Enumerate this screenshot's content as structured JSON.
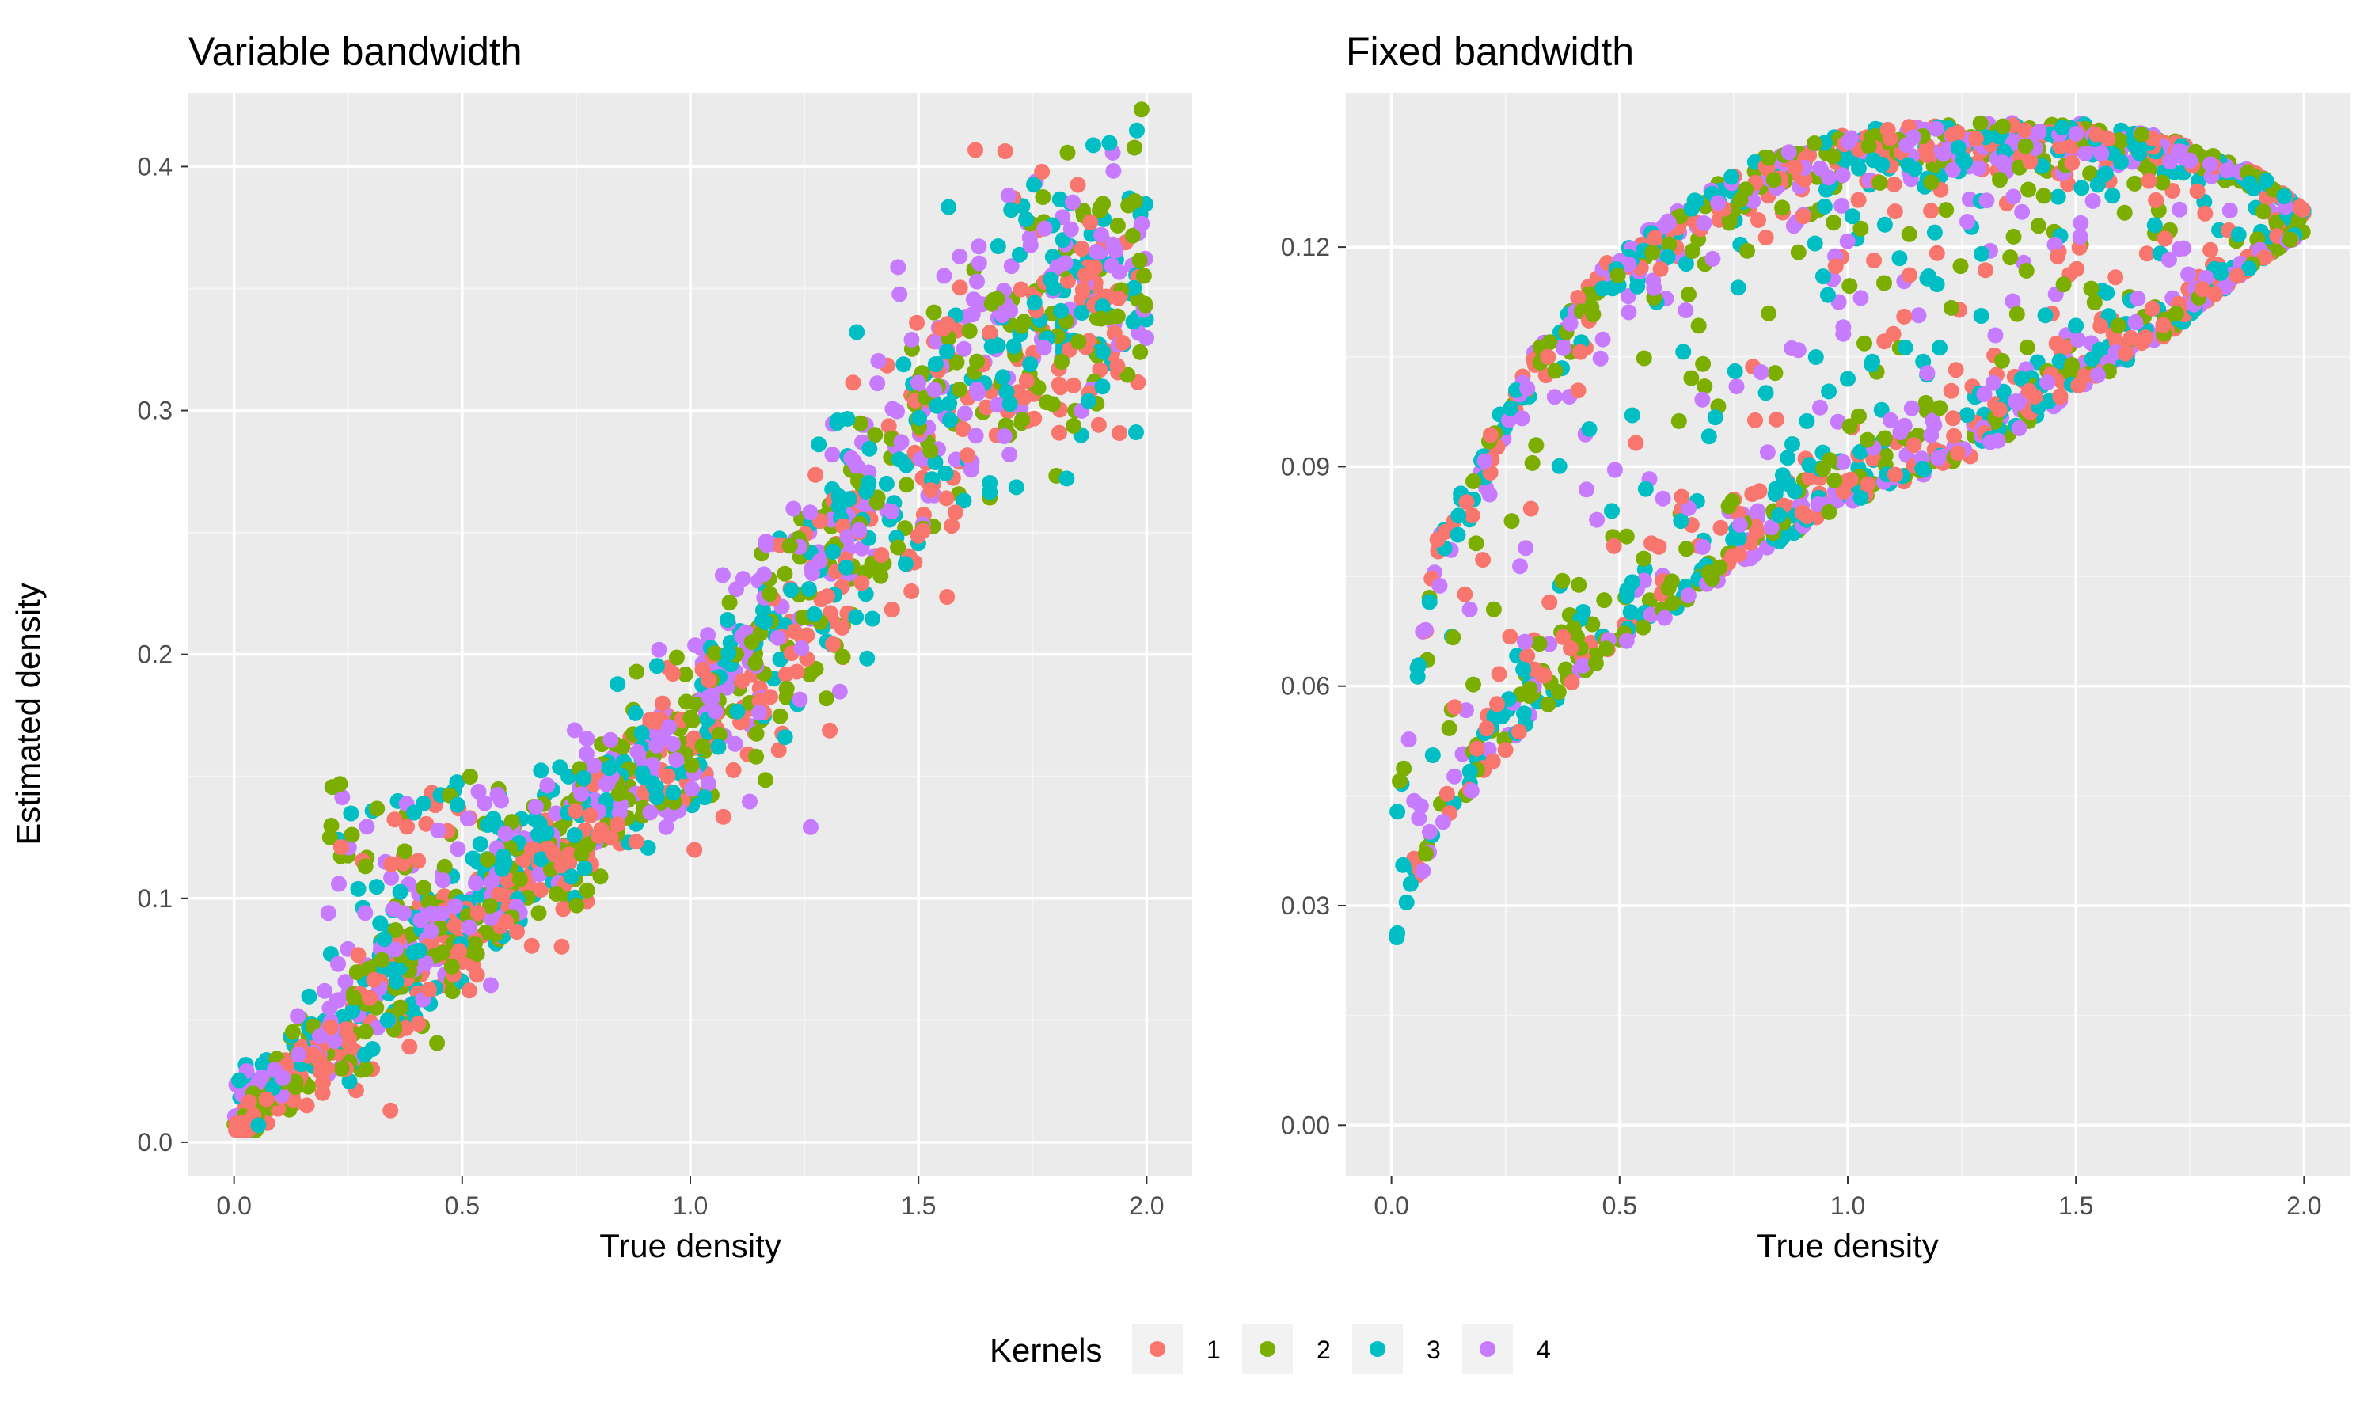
{
  "figure": {
    "shared_ylabel": "Estimated density",
    "legend_title": "Kernels"
  },
  "colors": {
    "panel_bg": "#ebebeb",
    "grid_major": "#ffffff",
    "grid_minor": "#f5f5f5",
    "kernel_1": "#f8766d",
    "kernel_2": "#7cae00",
    "kernel_3": "#00bfc4",
    "kernel_4": "#c77cff"
  },
  "chart_data": [
    {
      "type": "scatter",
      "title": "Variable bandwidth",
      "xlabel": "True density",
      "ylabel": "Estimated density",
      "xlim": [
        -0.1,
        2.1
      ],
      "ylim": [
        -0.014,
        0.43
      ],
      "xticks": [
        0.0,
        0.5,
        1.0,
        1.5,
        2.0
      ],
      "xtick_labels": [
        "0.0",
        "0.5",
        "1.0",
        "1.5",
        "2.0"
      ],
      "yticks": [
        0.0,
        0.1,
        0.2,
        0.3,
        0.4
      ],
      "ytick_labels": [
        "0.0",
        "0.1",
        "0.2",
        "0.3",
        "0.4"
      ],
      "grid": true,
      "legend": "bottom",
      "series": [
        {
          "name": "1",
          "points_per_series": 400
        },
        {
          "name": "2",
          "points_per_series": 400
        },
        {
          "name": "3",
          "points_per_series": 400
        },
        {
          "name": "4",
          "points_per_series": 400
        }
      ],
      "trend": {
        "x": [
          0.0,
          0.25,
          0.5,
          0.75,
          1.0,
          1.25,
          1.5,
          1.75,
          2.0
        ],
        "y_center": [
          0.01,
          0.05,
          0.09,
          0.13,
          0.17,
          0.22,
          0.29,
          0.34,
          0.36
        ],
        "spread": [
          0.01,
          0.02,
          0.025,
          0.025,
          0.03,
          0.04,
          0.05,
          0.05,
          0.05
        ]
      },
      "cluster": {
        "x_range": [
          0.2,
          0.6
        ],
        "y_range": [
          0.09,
          0.15
        ]
      }
    },
    {
      "type": "scatter",
      "title": "Fixed bandwidth",
      "xlabel": "True density",
      "ylabel": "Estimated density",
      "xlim": [
        -0.1,
        2.1
      ],
      "ylim": [
        -0.007,
        0.141
      ],
      "xticks": [
        0.0,
        0.5,
        1.0,
        1.5,
        2.0
      ],
      "xtick_labels": [
        "0.0",
        "0.5",
        "1.0",
        "1.5",
        "2.0"
      ],
      "yticks": [
        0.0,
        0.03,
        0.06,
        0.09,
        0.12
      ],
      "ytick_labels": [
        "0.00",
        "0.03",
        "0.06",
        "0.09",
        "0.12"
      ],
      "grid": true,
      "legend": "bottom",
      "series": [
        {
          "name": "1",
          "points_per_series": 400
        },
        {
          "name": "2",
          "points_per_series": 400
        },
        {
          "name": "3",
          "points_per_series": 400
        },
        {
          "name": "4",
          "points_per_series": 400
        }
      ],
      "shape": "crescent",
      "upper_edge": {
        "x": [
          0.0,
          0.1,
          0.3,
          0.5,
          0.8,
          1.0,
          1.3,
          1.5,
          1.7,
          1.9,
          2.0
        ],
        "y": [
          0.04,
          0.08,
          0.105,
          0.12,
          0.132,
          0.136,
          0.137,
          0.137,
          0.135,
          0.13,
          0.125
        ]
      },
      "lower_edge": {
        "x": [
          0.0,
          0.1,
          0.3,
          0.5,
          0.8,
          1.0,
          1.3,
          1.5,
          1.7,
          1.9,
          2.0
        ],
        "y": [
          0.022,
          0.04,
          0.055,
          0.065,
          0.078,
          0.085,
          0.092,
          0.1,
          0.108,
          0.118,
          0.122
        ]
      }
    }
  ]
}
